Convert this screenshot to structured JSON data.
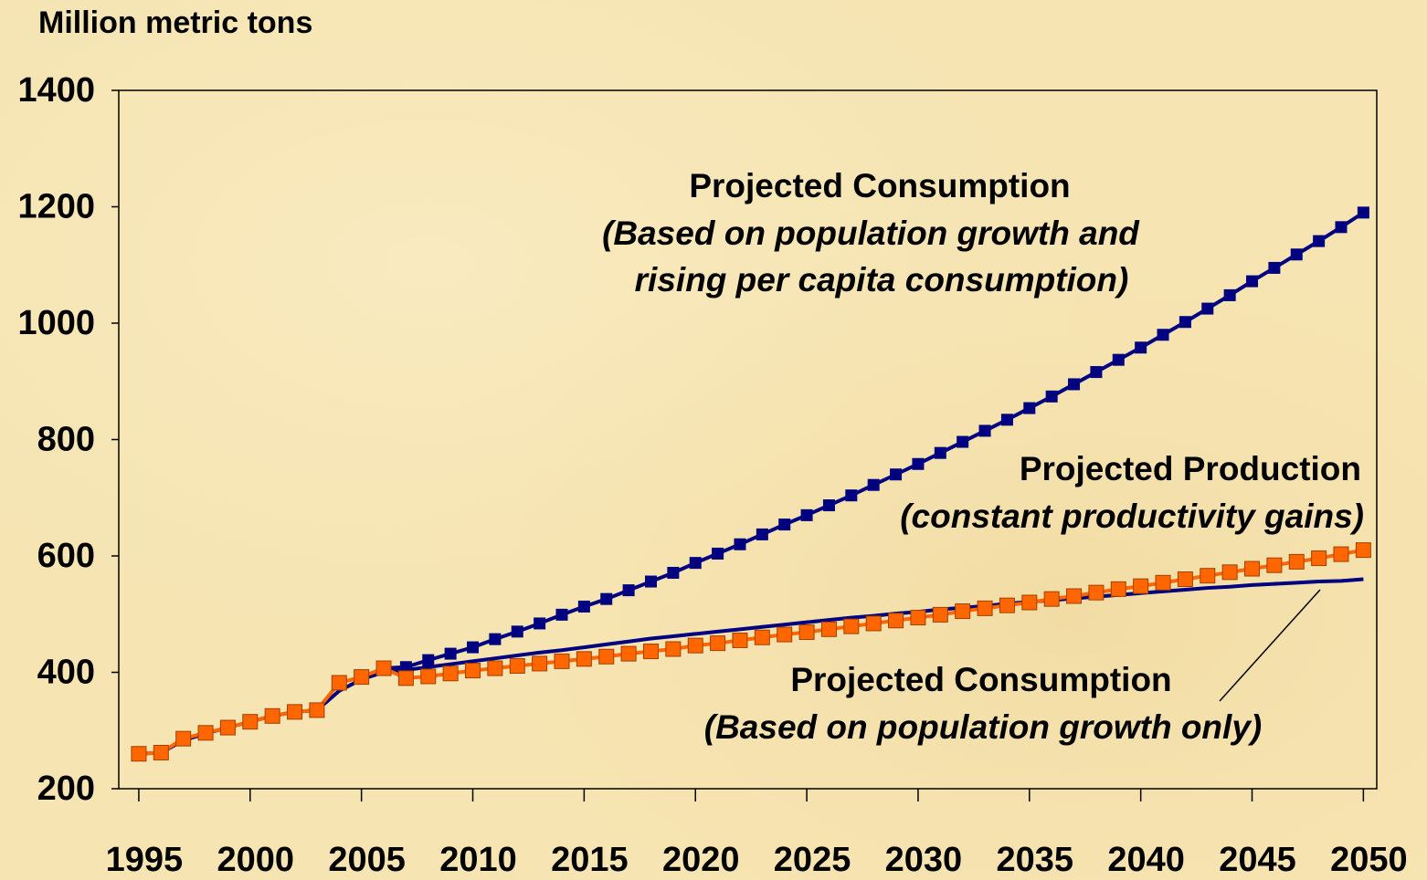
{
  "chart_data": {
    "type": "line",
    "y_axis_label": "Million metric tons",
    "x": [
      1995,
      1996,
      1997,
      1998,
      1999,
      2000,
      2001,
      2002,
      2003,
      2004,
      2005,
      2006,
      2007,
      2008,
      2009,
      2010,
      2011,
      2012,
      2013,
      2014,
      2015,
      2016,
      2017,
      2018,
      2019,
      2020,
      2021,
      2022,
      2023,
      2024,
      2025,
      2026,
      2027,
      2028,
      2029,
      2030,
      2031,
      2032,
      2033,
      2034,
      2035,
      2036,
      2037,
      2038,
      2039,
      2040,
      2041,
      2042,
      2043,
      2044,
      2045,
      2046,
      2047,
      2048,
      2049,
      2050
    ],
    "xlim": [
      1994.1,
      2050.6
    ],
    "xticks": [
      1995,
      2000,
      2005,
      2010,
      2015,
      2020,
      2025,
      2030,
      2035,
      2040,
      2045,
      2050
    ],
    "ylim": [
      200,
      1400
    ],
    "yticks": [
      200,
      400,
      600,
      800,
      1000,
      1200,
      1400
    ],
    "series": [
      {
        "color": "#000080",
        "marker": "none",
        "values": [
          260,
          262,
          283,
          295,
          305,
          315,
          325,
          332,
          335,
          368,
          388,
          400,
          404,
          409,
          414,
          419,
          424,
          429,
          434,
          438,
          443,
          448,
          453,
          458,
          462,
          466,
          470,
          474,
          478,
          482,
          486,
          490,
          494,
          497,
          501,
          504,
          508,
          511,
          514,
          518,
          521,
          524,
          527,
          530,
          533,
          536,
          539,
          542,
          545,
          547,
          550,
          552,
          554,
          556,
          557,
          560
        ]
      },
      {
        "color": "#000080",
        "marker": "square",
        "values": [
          null,
          null,
          null,
          null,
          null,
          null,
          null,
          null,
          null,
          null,
          null,
          407,
          409,
          421,
          432,
          443,
          457,
          470,
          484,
          499,
          513,
          526,
          541,
          556,
          571,
          588,
          604,
          620,
          637,
          654,
          670,
          687,
          704,
          722,
          740,
          758,
          777,
          796,
          815,
          834,
          854,
          874,
          895,
          916,
          937,
          958,
          980,
          1002,
          1025,
          1048,
          1072,
          1095,
          1118,
          1141,
          1165,
          1190
        ]
      },
      {
        "color": "#ff6600",
        "marker": "square",
        "values": [
          260,
          262,
          286,
          296,
          305,
          315,
          325,
          332,
          335,
          382,
          392,
          407,
          390,
          393,
          398,
          403,
          407,
          411,
          415,
          419,
          423,
          427,
          432,
          436,
          440,
          446,
          450,
          455,
          460,
          465,
          469,
          474,
          479,
          484,
          489,
          494,
          499,
          505,
          510,
          515,
          520,
          526,
          531,
          537,
          543,
          548,
          554,
          560,
          566,
          572,
          578,
          584,
          590,
          596,
          603,
          610
        ]
      }
    ],
    "annotations": [
      [
        "Projected Consumption",
        "(Based on population growth and",
        "rising per capita consumption)"
      ],
      [
        "Projected  Production",
        "(constant productivity gains)"
      ],
      [
        "Projected Consumption",
        "(Based on population growth only)"
      ]
    ]
  }
}
